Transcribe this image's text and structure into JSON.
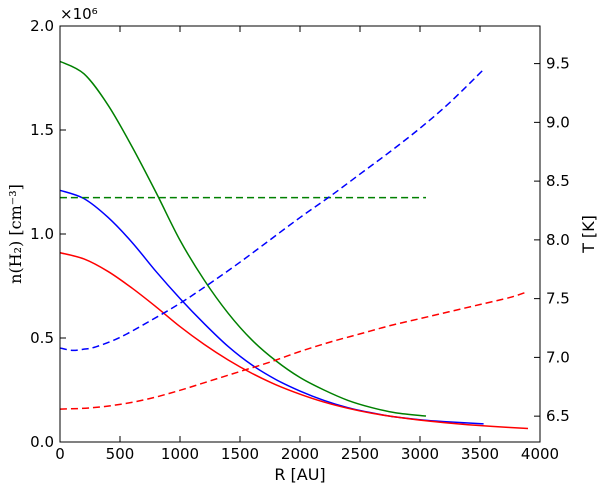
{
  "chart_data": {
    "type": "line",
    "title": "",
    "xlabel": "R [AU]",
    "ylabel_left": "n(H₂) [cm⁻³]",
    "ylabel_right": "T [K]",
    "left_multiplier": "×10⁶",
    "xlim": [
      0,
      4000
    ],
    "ylim_left": [
      0,
      2000000
    ],
    "ylim_right": [
      6.28,
      9.82
    ],
    "x_ticks": [
      0,
      500,
      1000,
      1500,
      2000,
      2500,
      3000,
      3500,
      4000
    ],
    "y_ticks_left": [
      0.0,
      0.5,
      1.0,
      1.5,
      2.0
    ],
    "y_ticks_left_labels": [
      "0.0",
      "0.5",
      "1.0",
      "1.5",
      "2.0"
    ],
    "y_ticks_right": [
      6.5,
      7.0,
      7.5,
      8.0,
      8.5,
      9.0,
      9.5
    ],
    "y_ticks_right_labels": [
      "6.5",
      "7.0",
      "7.5",
      "8.0",
      "8.5",
      "9.0",
      "9.5"
    ],
    "grid": false,
    "legend": "none",
    "series": [
      {
        "axis": "left",
        "style": "solid",
        "color": "#008000",
        "x": [
          0,
          200,
          400,
          600,
          800,
          1000,
          1200,
          1400,
          1600,
          1800,
          2000,
          2200,
          2400,
          2600,
          2800,
          3050
        ],
        "y": [
          1830000,
          1770000,
          1620000,
          1420000,
          1200000,
          970000,
          780000,
          620000,
          490000,
          390000,
          310000,
          250000,
          200000,
          165000,
          140000,
          125000
        ]
      },
      {
        "axis": "left",
        "style": "solid",
        "color": "#0000ff",
        "x": [
          0,
          200,
          400,
          600,
          800,
          1000,
          1200,
          1400,
          1600,
          1800,
          2000,
          2200,
          2400,
          2600,
          2800,
          3000,
          3200,
          3530
        ],
        "y": [
          1210000,
          1170000,
          1080000,
          960000,
          820000,
          690000,
          570000,
          460000,
          370000,
          300000,
          245000,
          200000,
          165000,
          140000,
          120000,
          107000,
          98000,
          87000
        ]
      },
      {
        "axis": "left",
        "style": "solid",
        "color": "#ff0000",
        "x": [
          0,
          200,
          400,
          600,
          800,
          1000,
          1200,
          1400,
          1600,
          1800,
          2000,
          2200,
          2400,
          2600,
          2800,
          3000,
          3200,
          3400,
          3600,
          3900
        ],
        "y": [
          910000,
          880000,
          820000,
          740000,
          650000,
          555000,
          470000,
          395000,
          330000,
          275000,
          230000,
          192000,
          162000,
          138000,
          120000,
          105000,
          93000,
          83000,
          75000,
          65000
        ]
      },
      {
        "axis": "right",
        "style": "dashed",
        "color": "#008000",
        "x": [
          0,
          3050
        ],
        "y": [
          8.36,
          8.36
        ]
      },
      {
        "axis": "right",
        "style": "dashed",
        "color": "#0000ff",
        "x": [
          0,
          100,
          200,
          300,
          500,
          750,
          1000,
          1250,
          1500,
          1750,
          2000,
          2250,
          2500,
          2750,
          3000,
          3250,
          3530
        ],
        "y": [
          7.08,
          7.06,
          7.07,
          7.09,
          7.17,
          7.31,
          7.46,
          7.63,
          7.81,
          8.0,
          8.19,
          8.37,
          8.56,
          8.75,
          8.95,
          9.17,
          9.45
        ]
      },
      {
        "axis": "right",
        "style": "dashed",
        "color": "#ff0000",
        "x": [
          0,
          250,
          500,
          750,
          1000,
          1250,
          1500,
          1750,
          2000,
          2250,
          2500,
          2750,
          3000,
          3250,
          3500,
          3750,
          3900
        ],
        "y": [
          6.56,
          6.57,
          6.6,
          6.65,
          6.72,
          6.8,
          6.88,
          6.96,
          7.05,
          7.13,
          7.2,
          7.27,
          7.33,
          7.39,
          7.45,
          7.51,
          7.56
        ]
      }
    ]
  }
}
